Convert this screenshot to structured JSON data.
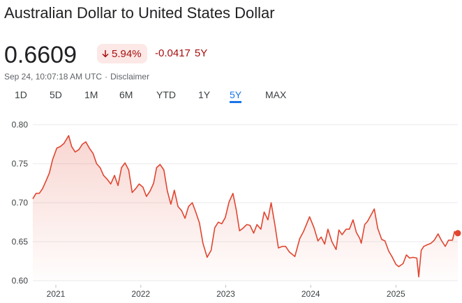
{
  "header": {
    "title": "Australian Dollar to United States Dollar",
    "price": "0.6609",
    "percent_change": "5.94%",
    "change_direction_icon": "arrow-down-icon",
    "abs_change": "-0.0417",
    "change_period": "5Y",
    "timestamp": "Sep 24, 10:07:18 AM UTC",
    "meta_separator": "·",
    "disclaimer": "Disclaimer"
  },
  "tabs": [
    {
      "label": "1D"
    },
    {
      "label": "5D"
    },
    {
      "label": "1M"
    },
    {
      "label": "6M"
    },
    {
      "label": "YTD"
    },
    {
      "label": "1Y"
    },
    {
      "label": "5Y",
      "active": true
    },
    {
      "label": "MAX"
    }
  ],
  "colors": {
    "line": "#e0452f",
    "negative_text": "#a50e0e",
    "badge_bg": "#fce8e6",
    "active_tab": "#1a73e8",
    "grid": "#e8eaed"
  },
  "chart_data": {
    "type": "area",
    "title": "",
    "xlabel": "",
    "ylabel": "",
    "y_ticks": [
      0.8,
      0.75,
      0.7,
      0.65,
      0.6
    ],
    "y_tick_labels": [
      "0.80",
      "0.75",
      "0.70",
      "0.65",
      "0.60"
    ],
    "ylim": [
      0.6,
      0.8
    ],
    "x_ticks": [
      "2021",
      "2022",
      "2023",
      "2024",
      "2025"
    ],
    "xlim": [
      "2020-09-24",
      "2025-09-24"
    ],
    "grid": true,
    "series": [
      {
        "x": [
          "2020-09-24",
          "2020-10-08",
          "2020-10-22",
          "2020-11-05",
          "2020-11-20",
          "2020-12-04",
          "2020-12-18",
          "2021-01-05",
          "2021-01-20",
          "2021-02-05",
          "2021-02-25",
          "2021-03-10",
          "2021-03-25",
          "2021-04-10",
          "2021-04-25",
          "2021-05-10",
          "2021-05-25",
          "2021-06-10",
          "2021-06-25",
          "2021-07-10",
          "2021-07-25",
          "2021-08-10",
          "2021-08-25",
          "2021-09-10",
          "2021-09-25",
          "2021-10-10",
          "2021-10-25",
          "2021-11-10",
          "2021-11-25",
          "2021-12-10",
          "2021-12-25",
          "2022-01-10",
          "2022-01-25",
          "2022-02-10",
          "2022-02-25",
          "2022-03-10",
          "2022-03-25",
          "2022-04-10",
          "2022-04-25",
          "2022-05-10",
          "2022-05-25",
          "2022-06-10",
          "2022-06-25",
          "2022-07-10",
          "2022-07-25",
          "2022-08-10",
          "2022-08-25",
          "2022-09-10",
          "2022-09-25",
          "2022-10-13",
          "2022-10-30",
          "2022-11-15",
          "2022-11-30",
          "2022-12-15",
          "2022-12-30",
          "2023-01-15",
          "2023-02-01",
          "2023-02-15",
          "2023-03-01",
          "2023-03-15",
          "2023-04-01",
          "2023-04-15",
          "2023-05-01",
          "2023-05-15",
          "2023-06-01",
          "2023-06-15",
          "2023-07-01",
          "2023-07-15",
          "2023-08-01",
          "2023-08-15",
          "2023-09-01",
          "2023-09-15",
          "2023-10-01",
          "2023-10-25",
          "2023-11-15",
          "2023-12-01",
          "2023-12-27",
          "2024-01-15",
          "2024-02-01",
          "2024-02-15",
          "2024-03-01",
          "2024-03-15",
          "2024-04-01",
          "2024-04-19",
          "2024-05-01",
          "2024-05-15",
          "2024-06-01",
          "2024-06-15",
          "2024-07-01",
          "2024-07-15",
          "2024-07-30",
          "2024-08-05",
          "2024-08-20",
          "2024-09-01",
          "2024-09-30",
          "2024-10-15",
          "2024-11-01",
          "2024-11-15",
          "2024-12-01",
          "2024-12-15",
          "2025-01-01",
          "2025-01-13",
          "2025-02-01",
          "2025-02-15",
          "2025-03-01",
          "2025-03-15",
          "2025-04-01",
          "2025-04-09",
          "2025-04-20",
          "2025-05-01",
          "2025-05-15",
          "2025-06-01",
          "2025-06-15",
          "2025-07-01",
          "2025-07-15",
          "2025-08-01",
          "2025-08-15",
          "2025-09-01",
          "2025-09-10",
          "2025-09-18",
          "2025-09-24"
        ],
        "y": [
          0.705,
          0.712,
          0.712,
          0.718,
          0.728,
          0.738,
          0.755,
          0.77,
          0.772,
          0.776,
          0.786,
          0.772,
          0.765,
          0.768,
          0.775,
          0.778,
          0.77,
          0.763,
          0.75,
          0.745,
          0.735,
          0.73,
          0.724,
          0.735,
          0.722,
          0.745,
          0.751,
          0.742,
          0.713,
          0.718,
          0.724,
          0.72,
          0.708,
          0.715,
          0.725,
          0.745,
          0.749,
          0.742,
          0.715,
          0.698,
          0.716,
          0.695,
          0.69,
          0.68,
          0.695,
          0.7,
          0.688,
          0.674,
          0.648,
          0.63,
          0.639,
          0.668,
          0.675,
          0.673,
          0.681,
          0.701,
          0.712,
          0.691,
          0.664,
          0.667,
          0.672,
          0.671,
          0.661,
          0.672,
          0.666,
          0.688,
          0.678,
          0.7,
          0.67,
          0.642,
          0.644,
          0.644,
          0.637,
          0.631,
          0.654,
          0.663,
          0.682,
          0.668,
          0.651,
          0.656,
          0.647,
          0.666,
          0.65,
          0.64,
          0.665,
          0.659,
          0.666,
          0.666,
          0.678,
          0.662,
          0.654,
          0.648,
          0.672,
          0.676,
          0.692,
          0.667,
          0.653,
          0.651,
          0.638,
          0.631,
          0.621,
          0.618,
          0.622,
          0.633,
          0.629,
          0.63,
          0.629,
          0.605,
          0.639,
          0.644,
          0.646,
          0.648,
          0.652,
          0.66,
          0.652,
          0.644,
          0.652,
          0.652,
          0.663,
          0.659,
          0.661
        ]
      }
    ],
    "current_point": {
      "x": "2025-09-24",
      "y": 0.6609
    }
  }
}
